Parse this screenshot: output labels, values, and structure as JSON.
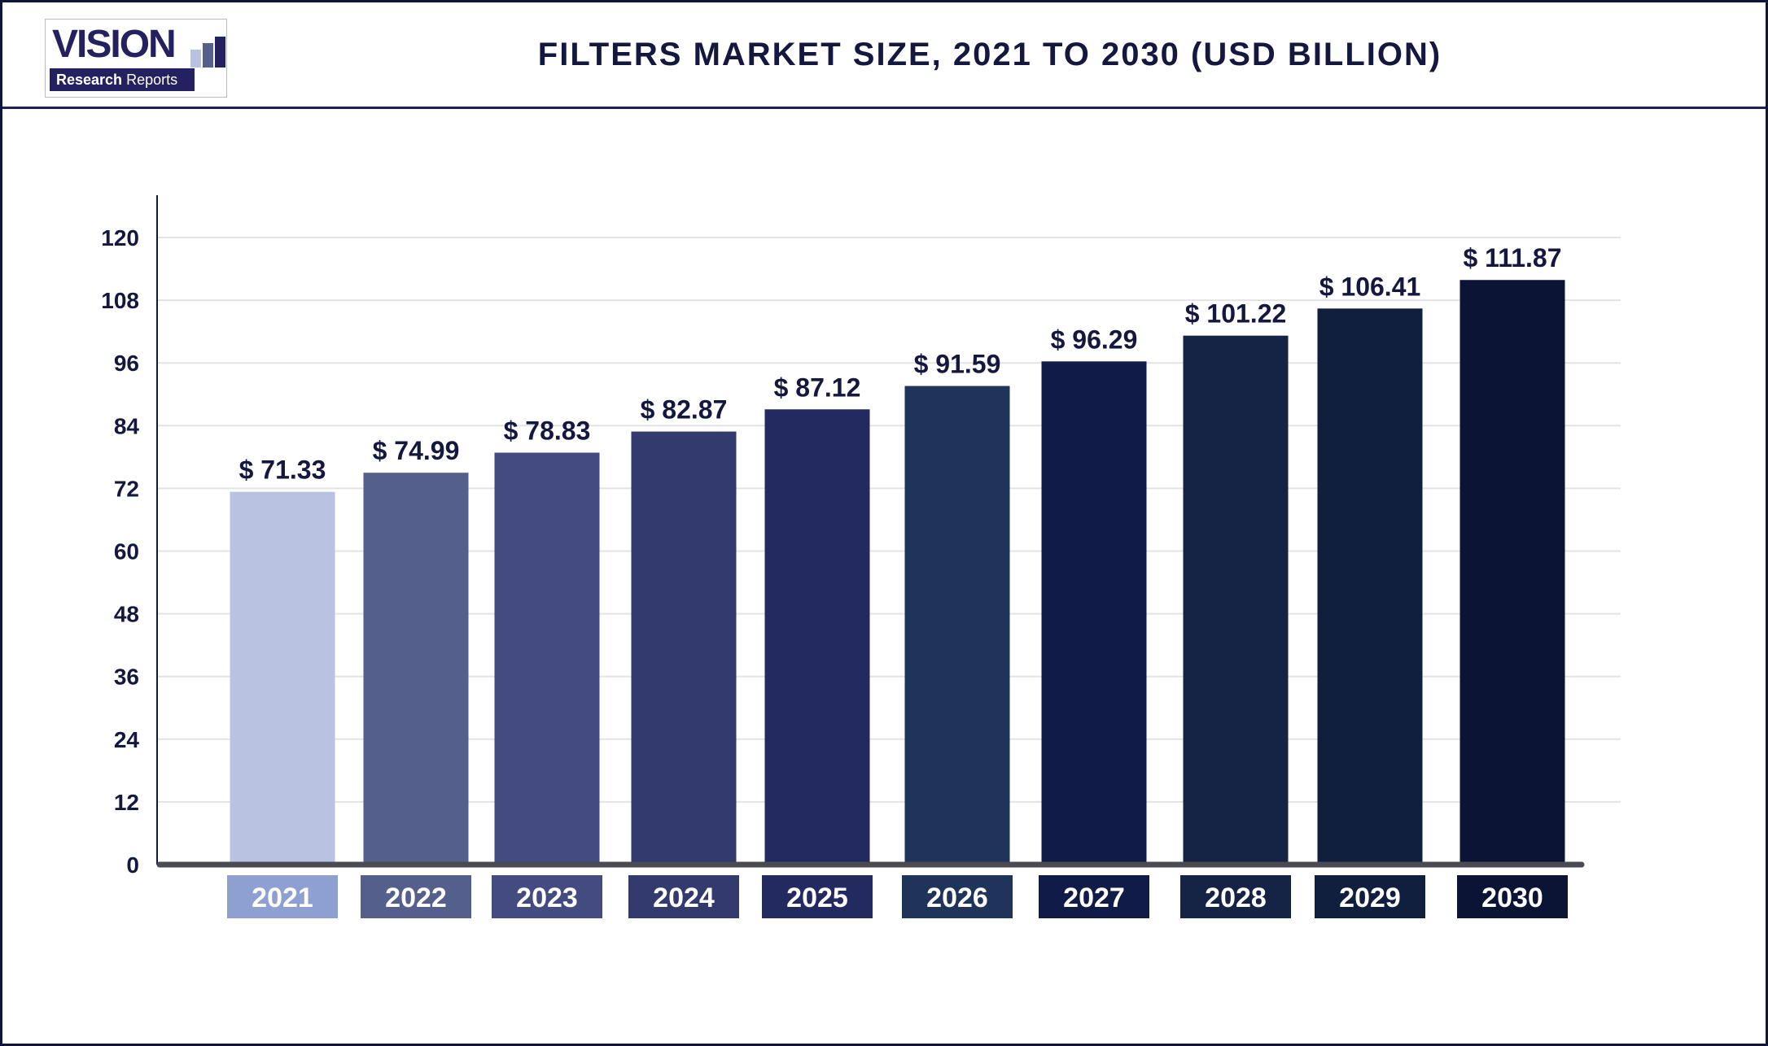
{
  "header": {
    "title": "FILTERS MARKET SIZE, 2021 TO 2030 (USD BILLION)",
    "logo_text": "VISION Research Reports"
  },
  "chart_data": {
    "type": "bar",
    "title": "FILTERS MARKET SIZE, 2021 TO 2030 (USD BILLION)",
    "categories": [
      "2021",
      "2022",
      "2023",
      "2024",
      "2025",
      "2026",
      "2027",
      "2028",
      "2029",
      "2030"
    ],
    "values": [
      71.33,
      74.99,
      78.83,
      82.87,
      87.12,
      91.59,
      96.29,
      101.22,
      106.41,
      111.87
    ],
    "data_labels": [
      "$ 71.33",
      "$ 74.99",
      "$ 78.83",
      "$ 82.87",
      "$ 87.12",
      "$ 91.59",
      "$ 96.29",
      "$ 101.22",
      "$ 106.41",
      "$ 111.87"
    ],
    "ylim": [
      0,
      120
    ],
    "yticks": [
      0,
      12,
      24,
      36,
      48,
      60,
      72,
      84,
      96,
      108,
      120
    ],
    "grid": true,
    "bar_colors": [
      "#b9c3e1",
      "#545f8c",
      "#434b80",
      "#323a6e",
      "#232a5f",
      "#1e3459",
      "#101c47",
      "#152445",
      "#111f3e",
      "#0b1434"
    ],
    "label_box_colors": [
      "#8e9fd2",
      "#545f8c",
      "#434b80",
      "#323a6e",
      "#232a5f",
      "#1e3459",
      "#101c47",
      "#152445",
      "#111f3e",
      "#0b1434"
    ]
  }
}
